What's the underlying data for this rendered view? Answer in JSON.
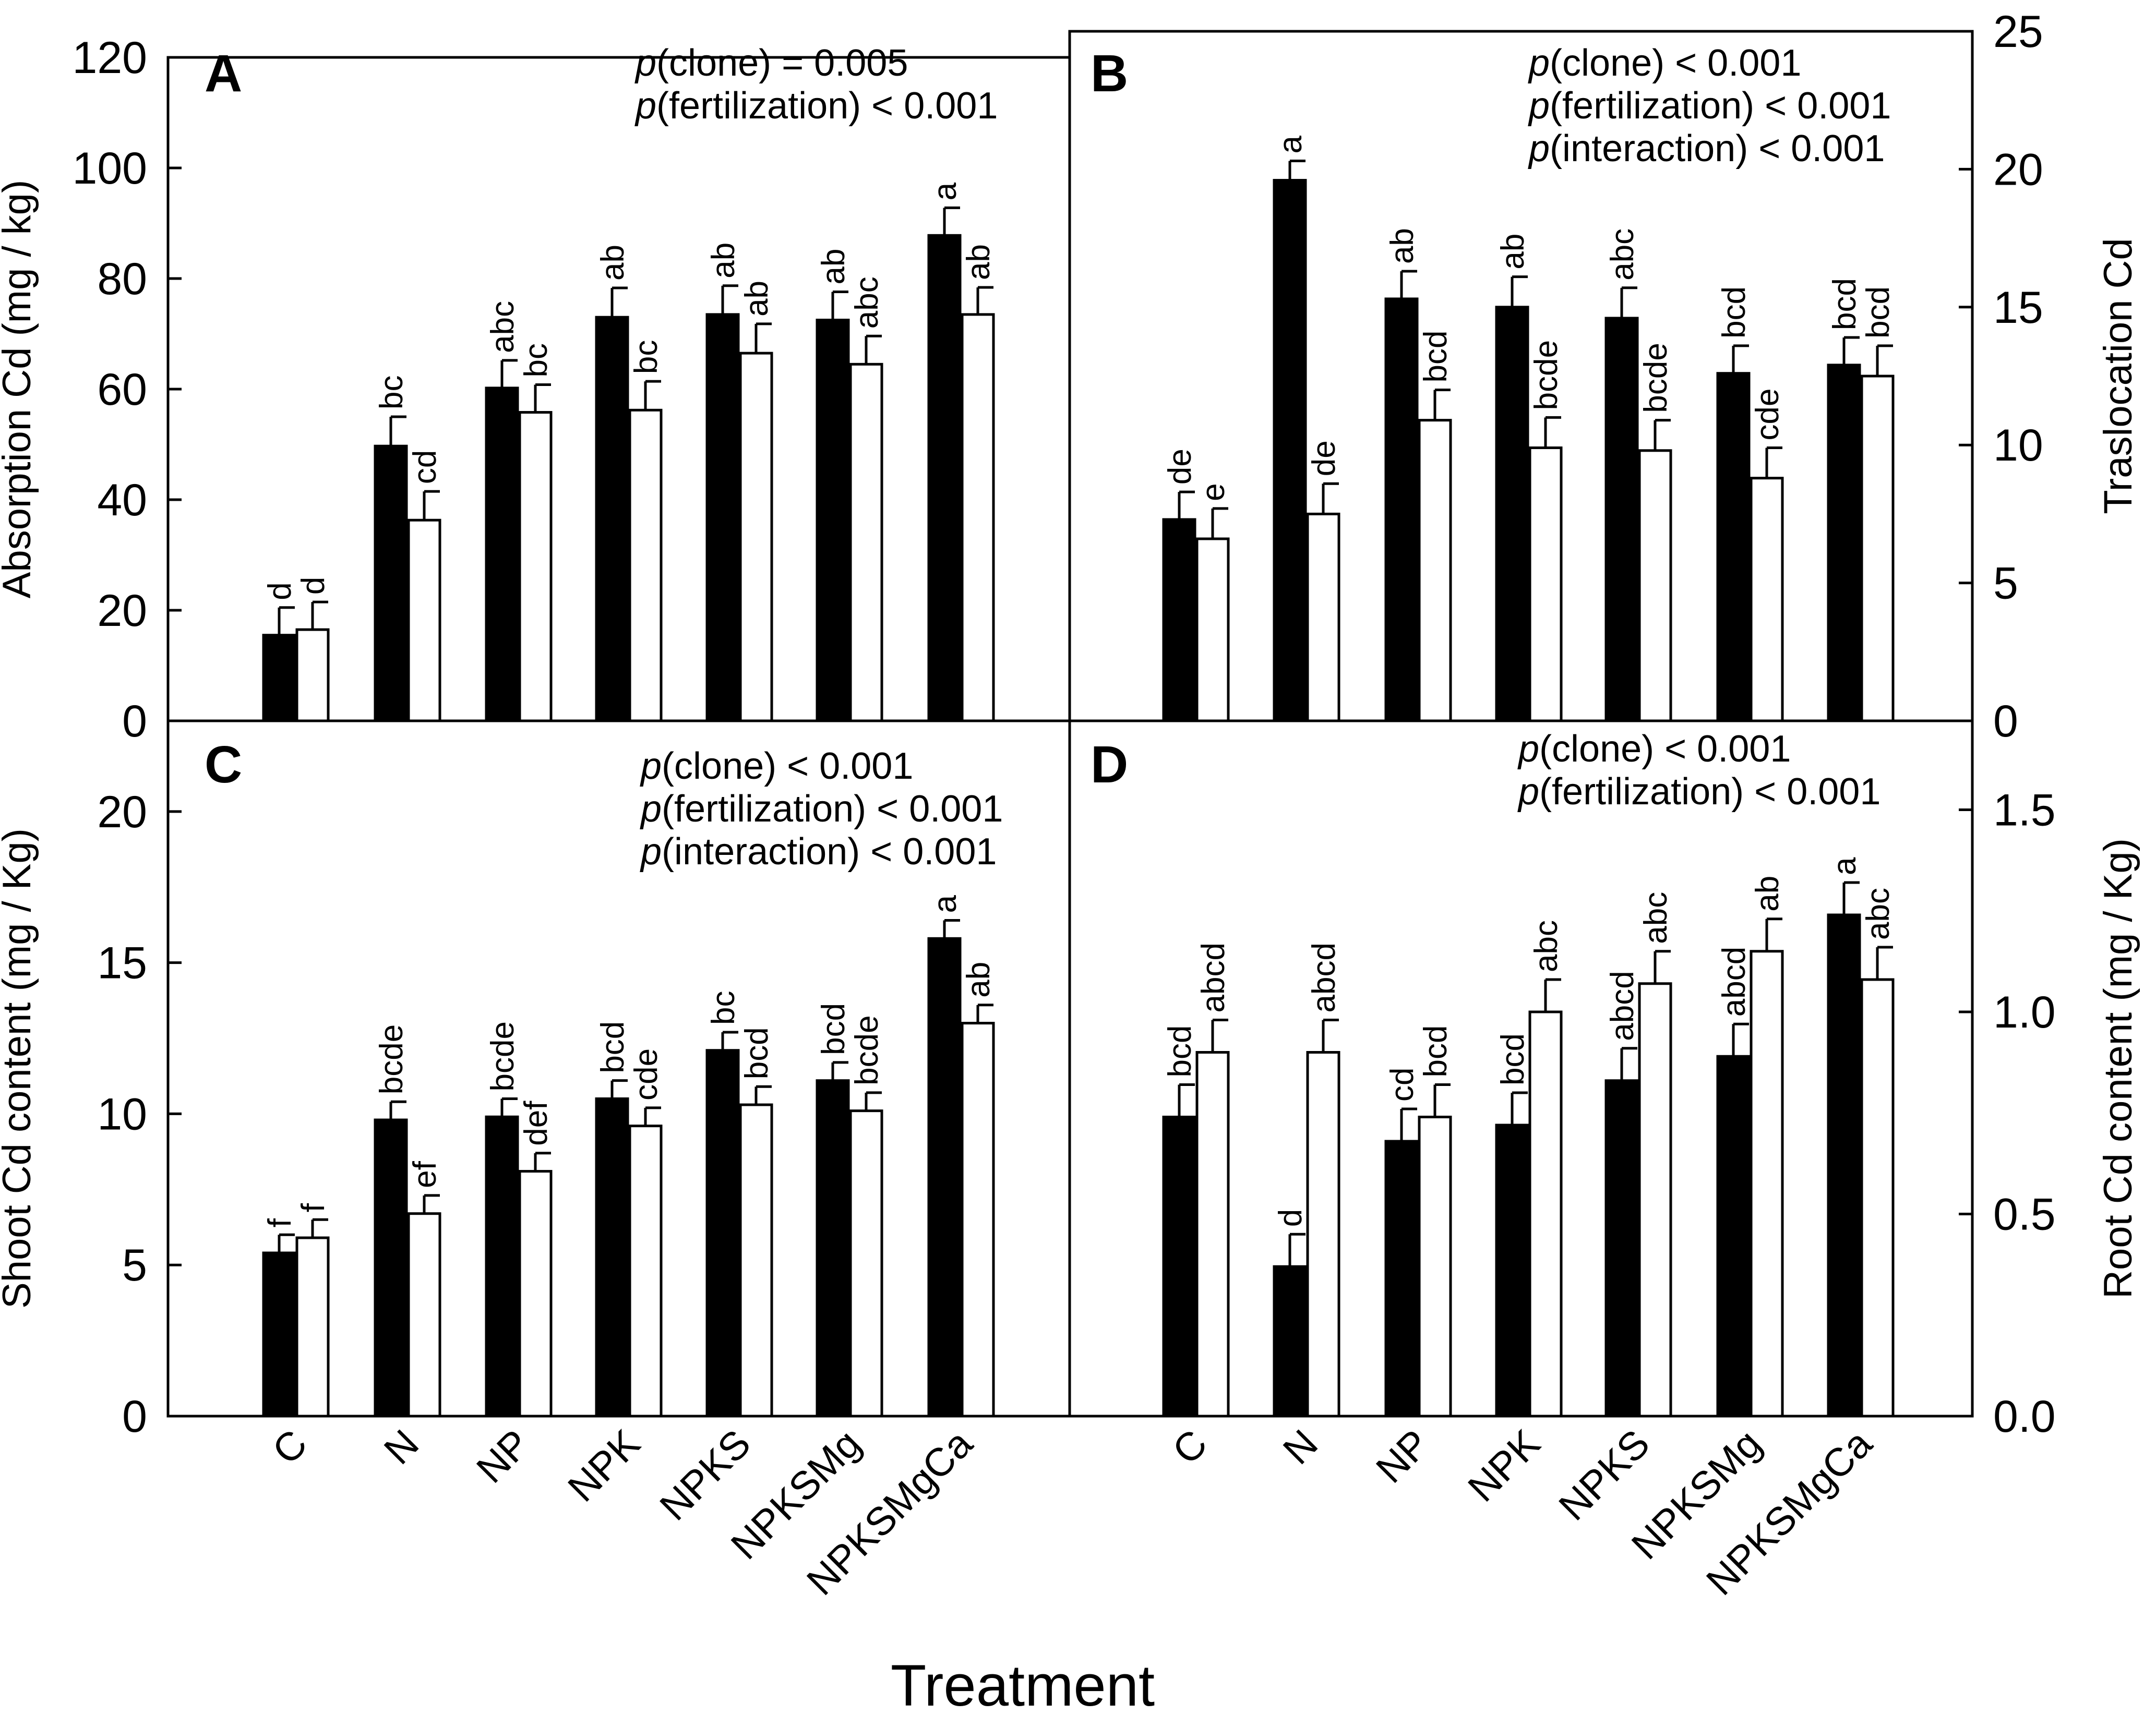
{
  "figure": {
    "x_title": "Treatment",
    "categories": [
      "C",
      "N",
      "NP",
      "NPK",
      "NPKS",
      "NPKSMg",
      "NPKSMgCa"
    ],
    "series_colors": {
      "filled": "#000000",
      "open": "#ffffff"
    }
  },
  "chart_data": [
    {
      "panel": "A",
      "type": "bar",
      "ylabel": "Absorption Cd (mg / kg)",
      "y_axis_side": "left",
      "ylim": [
        0,
        120
      ],
      "yticks": [
        0,
        20,
        40,
        60,
        80,
        100,
        120
      ],
      "stats": [
        {
          "var": "p",
          "text": "(clone) = 0.005"
        },
        {
          "var": "p",
          "text": "(fertilization) < 0.001"
        }
      ],
      "series": [
        {
          "fill": "#000000",
          "values": [
            15.5,
            49.7,
            60.2,
            73.0,
            73.5,
            72.5,
            87.8
          ],
          "errors": [
            5.0,
            5.3,
            5.0,
            5.3,
            5.2,
            5.1,
            5.0
          ],
          "letters": [
            "d",
            "bc",
            "abc",
            "ab",
            "ab",
            "ab",
            "a"
          ]
        },
        {
          "fill": "#ffffff",
          "values": [
            16.5,
            36.3,
            55.8,
            56.2,
            66.5,
            64.5,
            73.5
          ],
          "errors": [
            5.0,
            5.2,
            5.0,
            5.2,
            5.3,
            5.1,
            4.9
          ],
          "letters": [
            "d",
            "cd",
            "bc",
            "bc",
            "ab",
            "abc",
            "ab"
          ]
        }
      ]
    },
    {
      "panel": "B",
      "type": "bar",
      "ylabel": "Traslocation Cd",
      "y_axis_side": "right",
      "ylim": [
        0,
        25
      ],
      "yticks": [
        0,
        5,
        10,
        15,
        20,
        25
      ],
      "stats": [
        {
          "var": "p",
          "text": "(clone) < 0.001"
        },
        {
          "var": "p",
          "text": "(fertilization) < 0.001"
        },
        {
          "var": "p",
          "text": "(interaction) < 0.001"
        }
      ],
      "series": [
        {
          "fill": "#000000",
          "values": [
            7.3,
            19.6,
            15.3,
            15.0,
            14.6,
            12.6,
            12.9
          ],
          "errors": [
            1.0,
            0.7,
            1.0,
            1.1,
            1.1,
            1.0,
            1.0
          ],
          "letters": [
            "de",
            "a",
            "ab",
            "ab",
            "abc",
            "bcd",
            "bcd"
          ]
        },
        {
          "fill": "#ffffff",
          "values": [
            6.6,
            7.5,
            10.9,
            9.9,
            9.8,
            8.8,
            12.5
          ],
          "errors": [
            1.1,
            1.1,
            1.1,
            1.1,
            1.1,
            1.1,
            1.1
          ],
          "letters": [
            "e",
            "de",
            "bcd",
            "bcde",
            "bcde",
            "cde",
            "bcd"
          ]
        }
      ]
    },
    {
      "panel": "C",
      "type": "bar",
      "ylabel": "Shoot  Cd content (mg / Kg)",
      "y_axis_side": "left",
      "ylim": [
        0,
        23
      ],
      "yticks": [
        0,
        5,
        10,
        15,
        20
      ],
      "stats": [
        {
          "var": "p",
          "text": "(clone) < 0.001"
        },
        {
          "var": "p",
          "text": "(fertilization) < 0.001"
        },
        {
          "var": "p",
          "text": "(interaction) < 0.001"
        }
      ],
      "series": [
        {
          "fill": "#000000",
          "values": [
            5.4,
            9.8,
            9.9,
            10.5,
            12.1,
            11.1,
            15.8
          ],
          "errors": [
            0.6,
            0.6,
            0.6,
            0.6,
            0.6,
            0.6,
            0.6
          ],
          "letters": [
            "f",
            "bcde",
            "bcde",
            "bcd",
            "bc",
            "bcd",
            "a"
          ]
        },
        {
          "fill": "#ffffff",
          "values": [
            5.9,
            6.7,
            8.1,
            9.6,
            10.3,
            10.1,
            13.0
          ],
          "errors": [
            0.6,
            0.6,
            0.6,
            0.6,
            0.6,
            0.6,
            0.6
          ],
          "letters": [
            "f",
            "ef",
            "def",
            "cde",
            "bcd",
            "bcde",
            "ab"
          ]
        }
      ]
    },
    {
      "panel": "D",
      "type": "bar",
      "ylabel": "Root Cd content (mg / Kg)",
      "y_axis_side": "right",
      "ylim": [
        0,
        1.72
      ],
      "yticks": [
        0.0,
        0.5,
        1.0,
        1.5
      ],
      "stats": [
        {
          "var": "p",
          "text": "(clone) < 0.001"
        },
        {
          "var": "p",
          "text": "(fertilization) < 0.001"
        }
      ],
      "series": [
        {
          "fill": "#000000",
          "values": [
            0.74,
            0.37,
            0.68,
            0.72,
            0.83,
            0.89,
            1.24
          ],
          "errors": [
            0.08,
            0.08,
            0.08,
            0.08,
            0.08,
            0.08,
            0.08
          ],
          "letters": [
            "bcd",
            "d",
            "cd",
            "bcd",
            "abcd",
            "abcd",
            "a"
          ]
        },
        {
          "fill": "#ffffff",
          "values": [
            0.9,
            0.9,
            0.74,
            1.0,
            1.07,
            1.15,
            1.08
          ],
          "errors": [
            0.08,
            0.08,
            0.08,
            0.08,
            0.08,
            0.08,
            0.08
          ],
          "letters": [
            "abcd",
            "abcd",
            "bcd",
            "abc",
            "abc",
            "ab",
            "abc"
          ]
        }
      ]
    }
  ]
}
